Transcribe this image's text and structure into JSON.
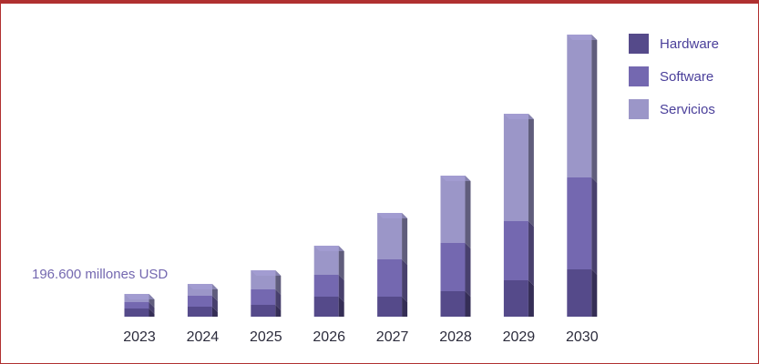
{
  "chart_data": {
    "type": "bar",
    "stacked": true,
    "style": "3d",
    "categories": [
      "2023",
      "2024",
      "2025",
      "2026",
      "2027",
      "2028",
      "2029",
      "2030"
    ],
    "series": [
      {
        "name": "Hardware",
        "color": "#554a8a",
        "values": [
          9,
          11,
          13,
          22,
          22,
          28,
          40,
          52
        ]
      },
      {
        "name": "Software",
        "color": "#7468b0",
        "values": [
          7,
          12,
          17,
          24,
          41,
          53,
          65,
          101
        ]
      },
      {
        "name": "Servicios",
        "color": "#9b96c8",
        "values": [
          9,
          13,
          21,
          32,
          51,
          74,
          118,
          157
        ]
      }
    ],
    "annotation": "196.600 millones USD",
    "legend_position": "top-right",
    "title": "",
    "xlabel": "",
    "ylabel": "",
    "ylim": [
      0,
      310
    ],
    "grid": false
  }
}
